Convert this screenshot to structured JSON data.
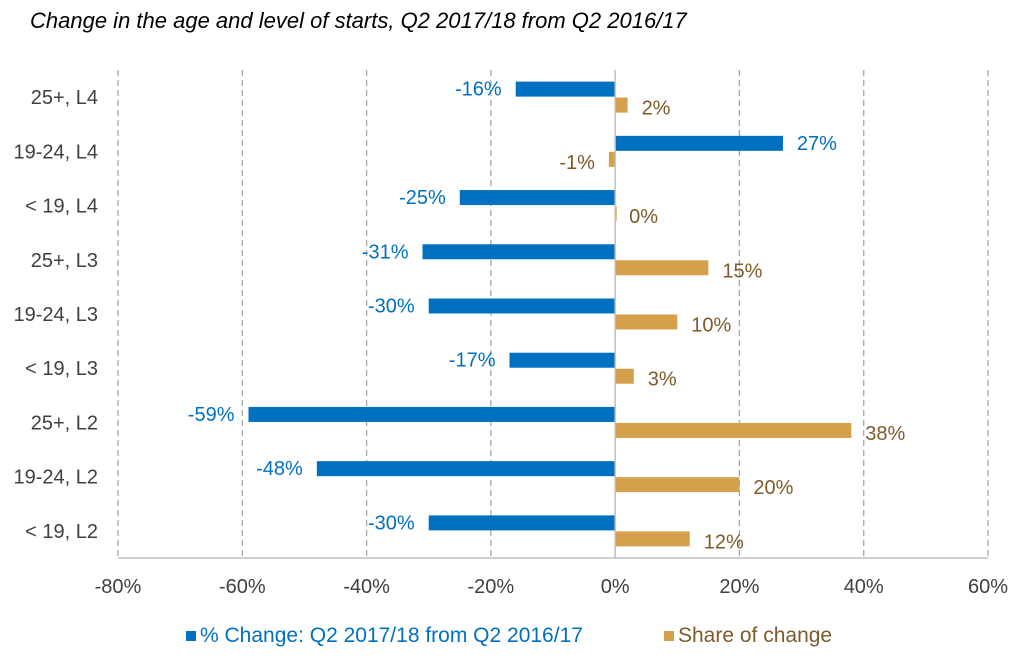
{
  "chart_data": {
    "type": "bar",
    "orientation": "horizontal",
    "title": "Change in the age and level of starts, Q2 2017/18 from Q2 2016/17",
    "categories": [
      "25+, L4",
      "19-24, L4",
      "< 19, L4",
      "25+, L3",
      "19-24, L3",
      "< 19, L3",
      "25+, L2",
      "19-24, L2",
      "< 19, L2"
    ],
    "series": [
      {
        "name": "% Change: Q2 2017/18 from Q2 2016/17",
        "color": "#0070C0",
        "values": [
          -16,
          27,
          -25,
          -31,
          -30,
          -17,
          -59,
          -48,
          -30
        ],
        "labels": [
          "-16%",
          "27%",
          "-25%",
          "-31%",
          "-30%",
          "-17%",
          "-59%",
          "-48%",
          "-30%"
        ]
      },
      {
        "name": "Share of change",
        "color": "#D4A04C",
        "label_color": "#7F5A28",
        "values": [
          2,
          -1,
          0,
          15,
          10,
          3,
          38,
          20,
          12
        ],
        "labels": [
          "2%",
          "-1%",
          "0%",
          "15%",
          "10%",
          "3%",
          "38%",
          "20%",
          "12%"
        ]
      }
    ],
    "x_ticks": [
      -80,
      -60,
      -40,
      -20,
      0,
      20,
      40,
      60
    ],
    "x_tick_labels": [
      "-80%",
      "-60%",
      "-40%",
      "-20%",
      "0%",
      "20%",
      "40%",
      "60%"
    ],
    "xlim": [
      -80,
      60
    ],
    "grid": "vertical dashed",
    "legend_position": "bottom"
  }
}
